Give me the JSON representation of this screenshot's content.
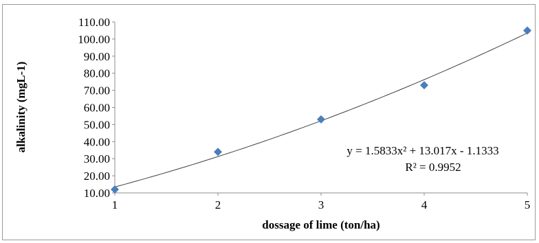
{
  "chart_data": {
    "type": "scatter",
    "xlabel": "dossage of lime (ton/ha)",
    "ylabel": "alkalinity (mgL-1)",
    "xlim": [
      1,
      5
    ],
    "ylim": [
      10,
      110
    ],
    "x_ticks": [
      "1",
      "2",
      "3",
      "4",
      "5"
    ],
    "y_ticks": [
      "10.00",
      "20.00",
      "30.00",
      "40.00",
      "50.00",
      "60.00",
      "70.00",
      "80.00",
      "90.00",
      "100.00",
      "110.00"
    ],
    "grid": false,
    "marker_color": "#4a7ebb",
    "series": [
      {
        "x": [
          1,
          2,
          3,
          4,
          5
        ],
        "y": [
          12,
          34,
          53,
          73,
          105
        ]
      }
    ],
    "trendline": {
      "kind": "polynomial-2",
      "coefficients": [
        1.5833,
        13.017,
        -1.1333
      ],
      "equation": "y = 1.5833x² + 13.017x - 1.1333",
      "r_squared": "R² = 0.9952"
    }
  }
}
